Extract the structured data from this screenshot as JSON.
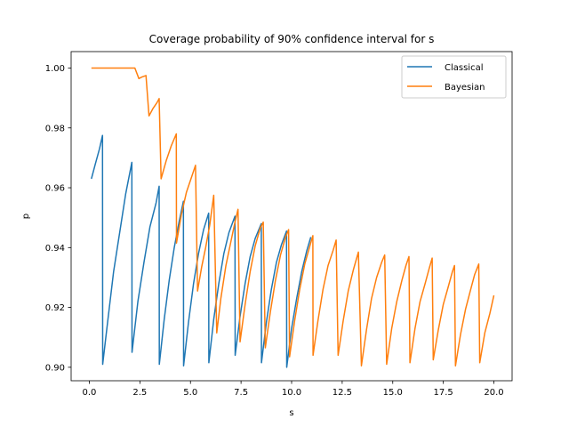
{
  "chart_data": {
    "type": "line",
    "title": "Coverage probability of 90% confidence interval for s",
    "xlabel": "s",
    "ylabel": "p",
    "xlim": [
      -0.9,
      20.9
    ],
    "ylim": [
      0.8955,
      1.0055
    ],
    "xticks": [
      "0.0",
      "2.5",
      "5.0",
      "7.5",
      "10.0",
      "12.5",
      "15.0",
      "17.5",
      "20.0"
    ],
    "xtick_values": [
      0,
      2.5,
      5,
      7.5,
      10,
      12.5,
      15,
      17.5,
      20
    ],
    "yticks": [
      "0.90",
      "0.92",
      "0.94",
      "0.96",
      "0.98",
      "1.00"
    ],
    "ytick_values": [
      0.9,
      0.92,
      0.94,
      0.96,
      0.98,
      1.0
    ],
    "grid": false,
    "legend_position": "top-right",
    "series": [
      {
        "name": "Classical",
        "color": "#1f77b4",
        "points": [
          [
            0.1,
            0.963
          ],
          [
            0.3,
            0.968
          ],
          [
            0.5,
            0.973
          ],
          [
            0.65,
            0.9775
          ],
          [
            0.66,
            0.901
          ],
          [
            0.9,
            0.915
          ],
          [
            1.2,
            0.932
          ],
          [
            1.5,
            0.945
          ],
          [
            1.8,
            0.958
          ],
          [
            2.1,
            0.9685
          ],
          [
            2.11,
            0.905
          ],
          [
            2.4,
            0.922
          ],
          [
            2.7,
            0.935
          ],
          [
            3.0,
            0.947
          ],
          [
            3.3,
            0.955
          ],
          [
            3.45,
            0.9605
          ],
          [
            3.46,
            0.901
          ],
          [
            3.7,
            0.916
          ],
          [
            3.95,
            0.929
          ],
          [
            4.2,
            0.94
          ],
          [
            4.45,
            0.949
          ],
          [
            4.65,
            0.9555
          ],
          [
            4.66,
            0.9005
          ],
          [
            4.9,
            0.915
          ],
          [
            5.15,
            0.928
          ],
          [
            5.4,
            0.938
          ],
          [
            5.65,
            0.946
          ],
          [
            5.9,
            0.9515
          ],
          [
            5.91,
            0.9015
          ],
          [
            6.15,
            0.916
          ],
          [
            6.4,
            0.928
          ],
          [
            6.65,
            0.938
          ],
          [
            6.9,
            0.945
          ],
          [
            7.2,
            0.9505
          ],
          [
            7.21,
            0.904
          ],
          [
            7.45,
            0.917
          ],
          [
            7.7,
            0.928
          ],
          [
            7.95,
            0.937
          ],
          [
            8.2,
            0.943
          ],
          [
            8.5,
            0.948
          ],
          [
            8.51,
            0.9015
          ],
          [
            8.75,
            0.915
          ],
          [
            9.0,
            0.926
          ],
          [
            9.25,
            0.935
          ],
          [
            9.5,
            0.941
          ],
          [
            9.75,
            0.9455
          ],
          [
            9.76,
            0.9
          ],
          [
            10.0,
            0.913
          ],
          [
            10.25,
            0.923
          ],
          [
            10.5,
            0.932
          ],
          [
            10.75,
            0.939
          ],
          [
            10.95,
            0.9435
          ]
        ]
      },
      {
        "name": "Bayesian",
        "color": "#ff7f0e",
        "points": [
          [
            0.1,
            1.0
          ],
          [
            0.7,
            1.0
          ],
          [
            1.2,
            1.0
          ],
          [
            1.8,
            1.0
          ],
          [
            2.25,
            1.0
          ],
          [
            2.45,
            0.9965
          ],
          [
            2.6,
            0.997
          ],
          [
            2.8,
            0.9975
          ],
          [
            2.95,
            0.984
          ],
          [
            3.15,
            0.9865
          ],
          [
            3.35,
            0.9885
          ],
          [
            3.45,
            0.9898
          ],
          [
            3.55,
            0.963
          ],
          [
            3.8,
            0.969
          ],
          [
            4.05,
            0.974
          ],
          [
            4.3,
            0.978
          ],
          [
            4.31,
            0.9415
          ],
          [
            4.55,
            0.951
          ],
          [
            4.8,
            0.9585
          ],
          [
            5.05,
            0.9635
          ],
          [
            5.25,
            0.9675
          ],
          [
            5.35,
            0.9255
          ],
          [
            5.55,
            0.9335
          ],
          [
            5.75,
            0.94
          ],
          [
            5.95,
            0.9475
          ],
          [
            6.15,
            0.9575
          ],
          [
            6.3,
            0.9115
          ],
          [
            6.5,
            0.923
          ],
          [
            6.75,
            0.934
          ],
          [
            7.0,
            0.942
          ],
          [
            7.2,
            0.9485
          ],
          [
            7.35,
            0.9528
          ],
          [
            7.45,
            0.9085
          ],
          [
            7.7,
            0.921
          ],
          [
            7.95,
            0.932
          ],
          [
            8.2,
            0.9405
          ],
          [
            8.45,
            0.9465
          ],
          [
            8.6,
            0.9485
          ],
          [
            8.7,
            0.9065
          ],
          [
            8.95,
            0.9185
          ],
          [
            9.2,
            0.929
          ],
          [
            9.45,
            0.9375
          ],
          [
            9.7,
            0.9435
          ],
          [
            9.85,
            0.946
          ],
          [
            9.9,
            0.9035
          ],
          [
            10.15,
            0.9155
          ],
          [
            10.4,
            0.926
          ],
          [
            10.65,
            0.9345
          ],
          [
            10.9,
            0.9405
          ],
          [
            11.05,
            0.944
          ],
          [
            11.06,
            0.904
          ],
          [
            11.3,
            0.9155
          ],
          [
            11.55,
            0.926
          ],
          [
            11.8,
            0.934
          ],
          [
            12.05,
            0.939
          ],
          [
            12.2,
            0.9425
          ],
          [
            12.3,
            0.904
          ],
          [
            12.55,
            0.9155
          ],
          [
            12.8,
            0.9255
          ],
          [
            13.05,
            0.9325
          ],
          [
            13.3,
            0.9385
          ],
          [
            13.45,
            0.9005
          ],
          [
            13.7,
            0.9125
          ],
          [
            13.95,
            0.923
          ],
          [
            14.2,
            0.93
          ],
          [
            14.45,
            0.935
          ],
          [
            14.6,
            0.9375
          ],
          [
            14.7,
            0.901
          ],
          [
            14.95,
            0.913
          ],
          [
            15.2,
            0.922
          ],
          [
            15.45,
            0.929
          ],
          [
            15.65,
            0.934
          ],
          [
            15.8,
            0.937
          ],
          [
            15.85,
            0.9015
          ],
          [
            16.1,
            0.913
          ],
          [
            16.35,
            0.922
          ],
          [
            16.6,
            0.928
          ],
          [
            16.8,
            0.933
          ],
          [
            16.95,
            0.9365
          ],
          [
            17.0,
            0.9025
          ],
          [
            17.25,
            0.9125
          ],
          [
            17.5,
            0.921
          ],
          [
            17.75,
            0.927
          ],
          [
            17.95,
            0.932
          ],
          [
            18.05,
            0.934
          ],
          [
            18.1,
            0.9005
          ],
          [
            18.35,
            0.911
          ],
          [
            18.6,
            0.9195
          ],
          [
            18.85,
            0.926
          ],
          [
            19.05,
            0.931
          ],
          [
            19.25,
            0.9345
          ],
          [
            19.3,
            0.9015
          ],
          [
            19.55,
            0.9115
          ],
          [
            19.8,
            0.918
          ],
          [
            20.0,
            0.924
          ]
        ]
      }
    ]
  }
}
